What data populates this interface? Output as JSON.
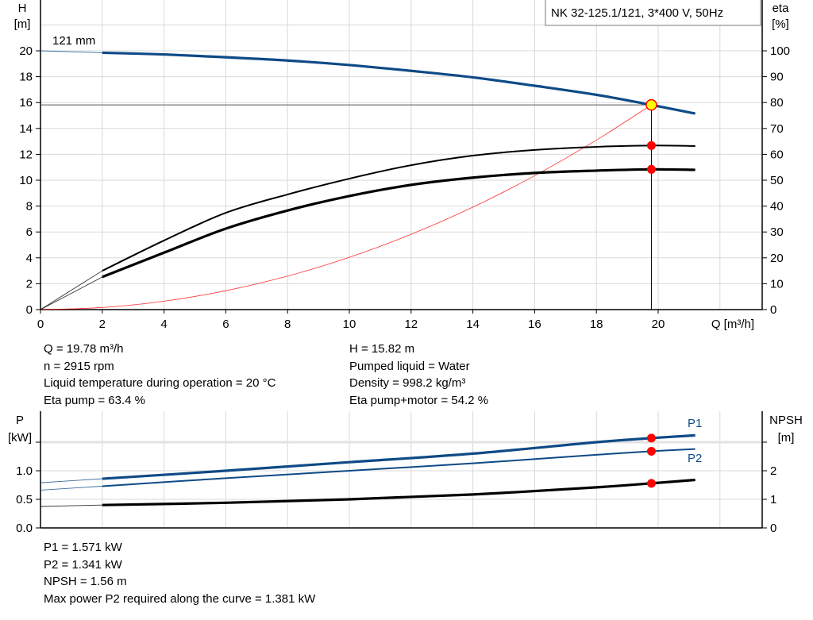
{
  "chart_data": [
    {
      "type": "line",
      "title": "NK 32-125.1/121, 3*400 V, 50Hz",
      "curve_label": "121 mm",
      "xlabel": "Q [m³/h]",
      "ylabel_left": [
        "H",
        "[m]"
      ],
      "ylabel_right": [
        "eta",
        "[%]"
      ],
      "xlim": [
        0,
        23.4
      ],
      "ylim_left": [
        0,
        23.9
      ],
      "ylim_right": [
        0,
        119.6
      ],
      "x_ticks": [
        0,
        2,
        4,
        6,
        8,
        10,
        12,
        14,
        16,
        18,
        20
      ],
      "y_ticks_left": [
        0,
        2,
        4,
        6,
        8,
        10,
        12,
        14,
        16,
        18,
        20
      ],
      "y_ticks_right": [
        0,
        10,
        20,
        30,
        40,
        50,
        60,
        70,
        80,
        90,
        100
      ],
      "grid": true,
      "operating_point": {
        "Q": 19.78,
        "H": 15.82,
        "eta_pump": 63.4,
        "eta_pump_motor": 54.2
      },
      "series": [
        {
          "key": "H",
          "axis": "left",
          "color": "#0e4a86",
          "x": [
            0,
            2,
            4,
            6,
            8,
            10,
            12,
            14,
            16,
            18,
            19.78,
            21.2
          ],
          "y": [
            20,
            19.85,
            19.72,
            19.5,
            19.25,
            18.9,
            18.45,
            17.95,
            17.3,
            16.6,
            15.82,
            15.15
          ]
        },
        {
          "key": "eta_pump",
          "axis": "right",
          "color": "#000000",
          "x": [
            0,
            2,
            4,
            6,
            8,
            10,
            12,
            14,
            16,
            18,
            19.78,
            21.2
          ],
          "y": [
            0,
            15,
            26.7,
            37.4,
            44.5,
            50.6,
            55.8,
            59.5,
            61.7,
            62.9,
            63.4,
            63.2
          ]
        },
        {
          "key": "eta_pump_motor",
          "axis": "right",
          "color": "#000000",
          "x": [
            0,
            2,
            4,
            6,
            8,
            10,
            12,
            14,
            16,
            18,
            19.78,
            21.2
          ],
          "y": [
            0,
            12.6,
            22,
            31.3,
            38.3,
            43.9,
            48.2,
            51,
            52.8,
            53.7,
            54.2,
            54.0
          ]
        },
        {
          "key": "system",
          "axis": "left",
          "color": "#ff0000",
          "x": [
            0,
            2,
            4,
            6,
            8,
            10,
            12,
            14,
            16,
            18,
            19.78
          ],
          "y": [
            0,
            0.16,
            0.65,
            1.46,
            2.59,
            4.04,
            5.82,
            7.92,
            10.35,
            13.1,
            15.82
          ]
        }
      ]
    },
    {
      "type": "line",
      "xlim": [
        0,
        23.4
      ],
      "ylabel_left": [
        "P",
        "[kW]"
      ],
      "ylabel_right": [
        "NPSH",
        "[m]"
      ],
      "ylim_left": [
        0,
        2.0
      ],
      "ylim_right": [
        0,
        4.0
      ],
      "y_ticks_left": [
        "0.0",
        "0.5",
        "1.0"
      ],
      "y_ticks_right": [
        "0",
        "1",
        "2"
      ],
      "grid": true,
      "series": [
        {
          "name": "P1",
          "axis": "left",
          "color": "#0e4a86",
          "x": [
            0,
            2,
            6,
            10,
            14,
            18,
            19.78,
            21.2
          ],
          "y": [
            0.79,
            0.86,
            1.0,
            1.15,
            1.3,
            1.5,
            1.571,
            1.62
          ]
        },
        {
          "name": "P2",
          "axis": "left",
          "color": "#0e4a86",
          "x": [
            0,
            2,
            6,
            10,
            14,
            18,
            19.78,
            21.2
          ],
          "y": [
            0.66,
            0.73,
            0.87,
            1.0,
            1.13,
            1.28,
            1.341,
            1.38
          ]
        },
        {
          "key": "NPSH",
          "axis": "right",
          "color": "#000000",
          "x": [
            0,
            2,
            6,
            10,
            14,
            18,
            19.78,
            21.2
          ],
          "y": [
            0.75,
            0.8,
            0.88,
            1.0,
            1.17,
            1.42,
            1.56,
            1.68
          ]
        }
      ],
      "operating_point": {
        "Q": 19.78,
        "P1": 1.571,
        "P2": 1.341,
        "NPSH": 1.56
      }
    }
  ],
  "info_top": {
    "left": [
      "Q = 19.78 m³/h",
      "n = 2915 rpm",
      "Liquid temperature during operation = 20 °C",
      "Eta pump = 63.4 %"
    ],
    "right": [
      "H = 15.82 m",
      "Pumped liquid = Water",
      "Density = 998.2 kg/m³",
      "Eta pump+motor = 54.2 %"
    ]
  },
  "info_bottom": [
    "P1 = 1.571 kW",
    "P2 = 1.341 kW",
    "NPSH = 1.56 m",
    "Max power P2 required along the curve = 1.381 kW"
  ],
  "colors": {
    "blue": "#0e4a86",
    "red": "#ff0000",
    "marker_yellow": "#ffff00",
    "grid": "#d9d9d9"
  }
}
